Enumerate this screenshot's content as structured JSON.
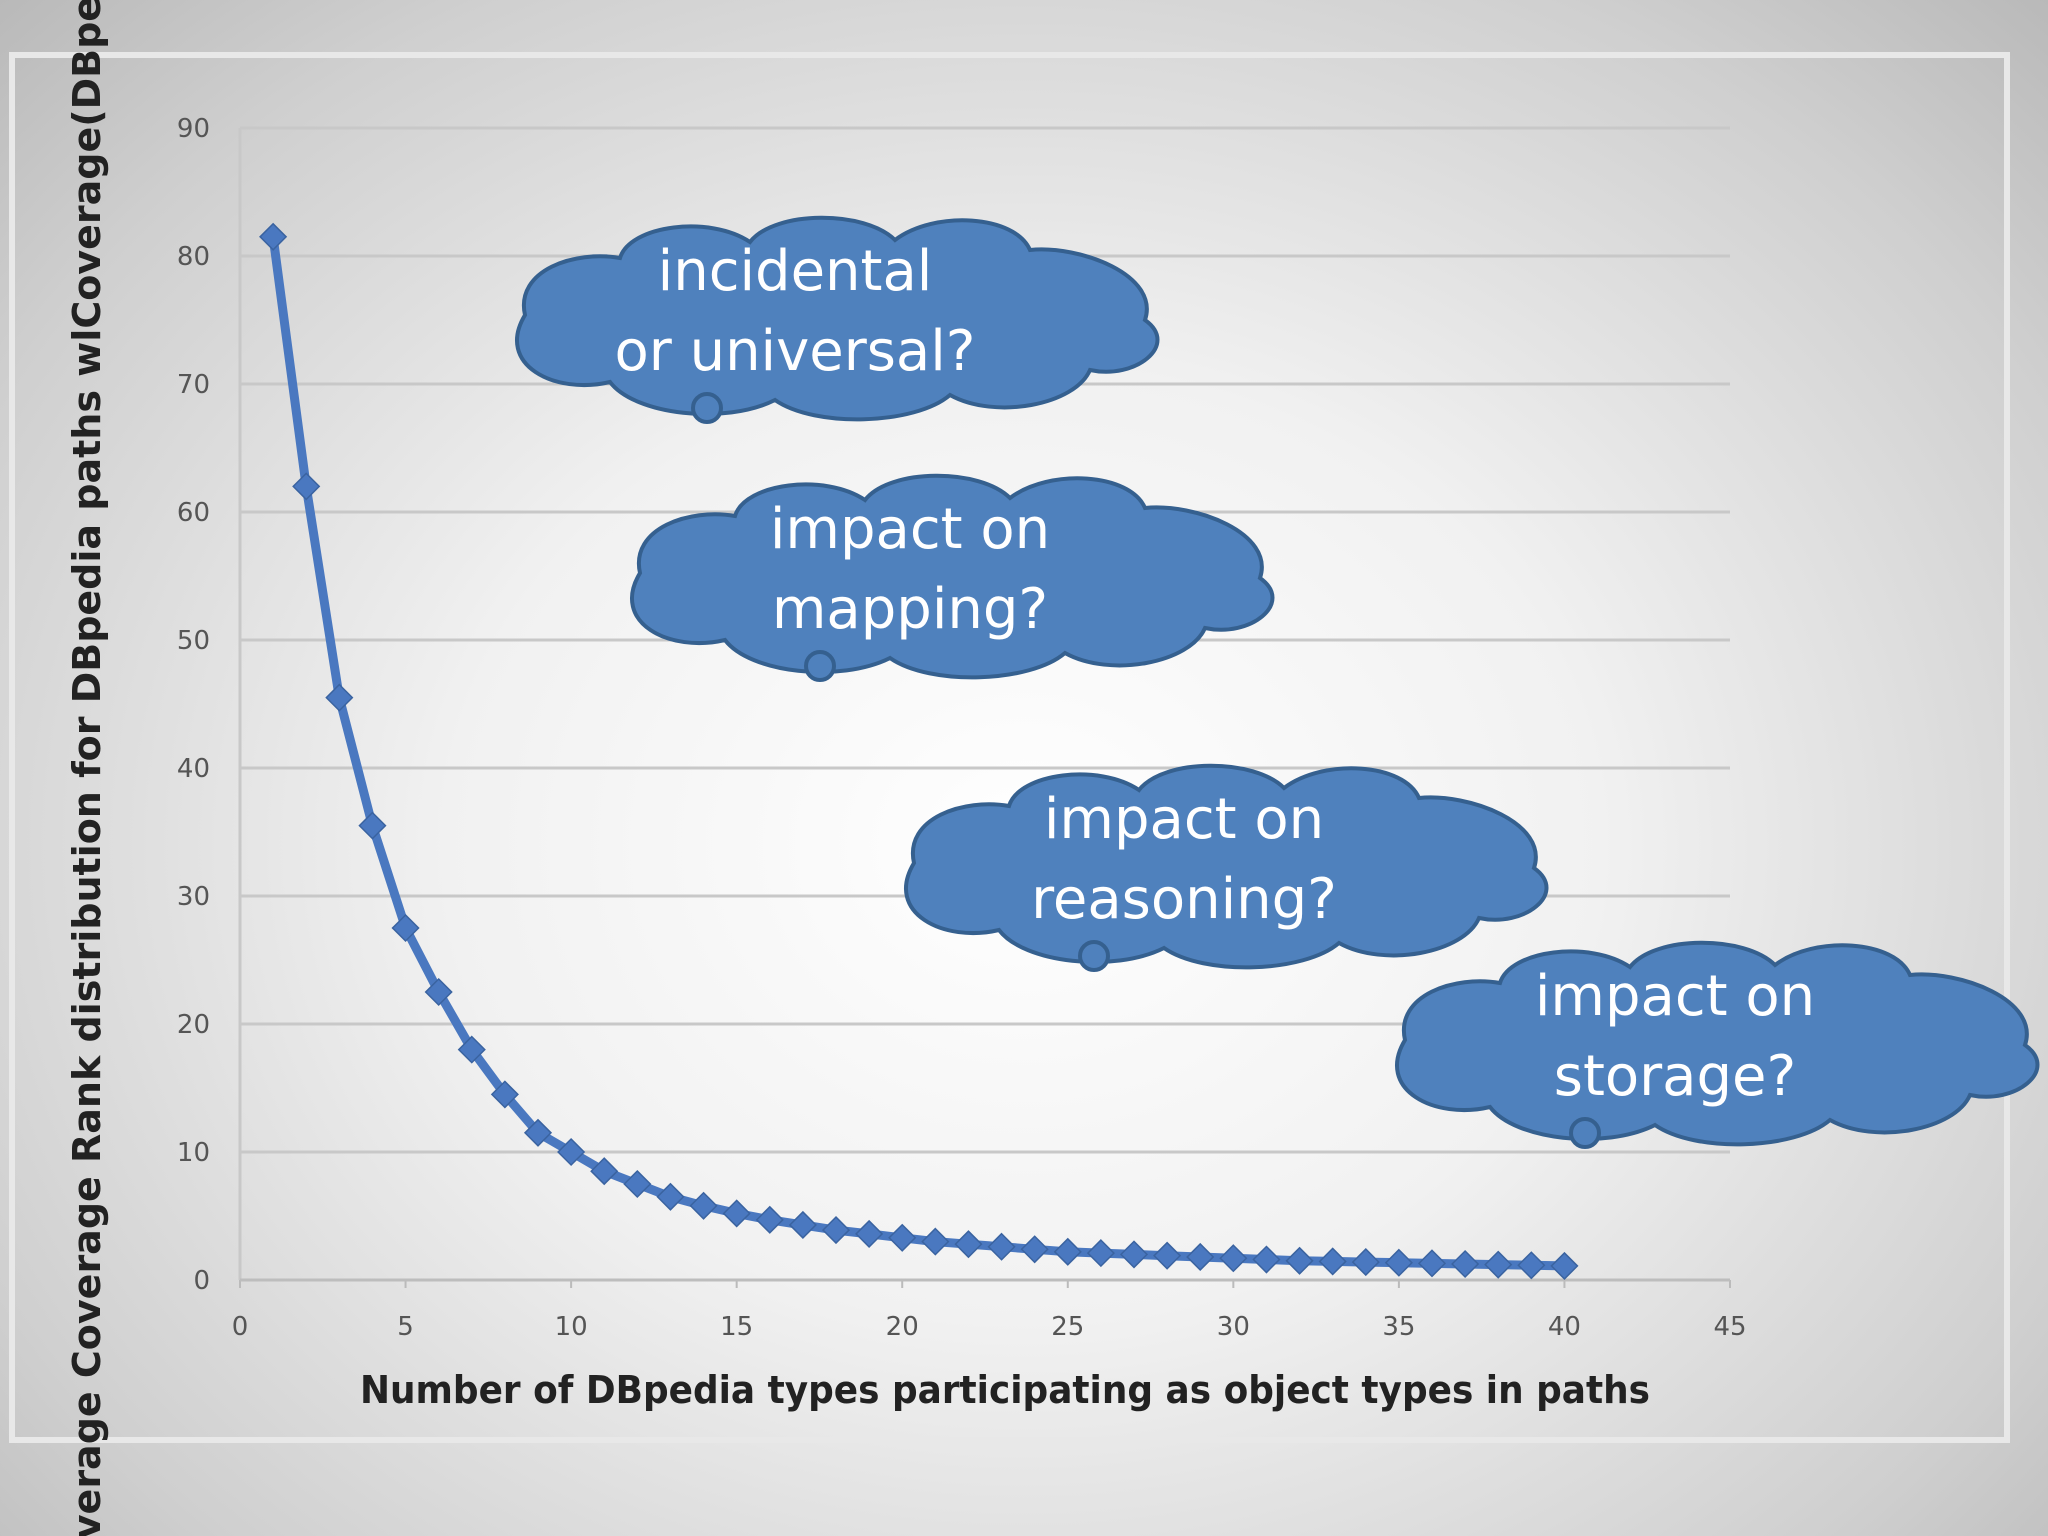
{
  "chart_data": {
    "type": "line",
    "title": "",
    "xlabel": "Number of DBpedia types participating as object types in paths",
    "ylabel": "Average Coverage Rank distribution for DBpedia paths wlCoverage(DBpedia)",
    "xlim": [
      0,
      45
    ],
    "ylim": [
      0,
      90
    ],
    "x_ticks": [
      "0",
      "5",
      "10",
      "15",
      "20",
      "25",
      "30",
      "35",
      "40",
      "45"
    ],
    "y_ticks": [
      "0",
      "10",
      "20",
      "30",
      "40",
      "50",
      "60",
      "70",
      "80",
      "90"
    ],
    "grid": true,
    "legend": "none",
    "series": [
      {
        "color": "#4a78c0",
        "marker": "diamond",
        "x": [
          1,
          2,
          3,
          4,
          5,
          6,
          7,
          8,
          9,
          10,
          11,
          12,
          13,
          14,
          15,
          16,
          17,
          18,
          19,
          20,
          21,
          22,
          23,
          24,
          25,
          26,
          27,
          28,
          29,
          30,
          31,
          32,
          33,
          34,
          35,
          36,
          37,
          38,
          39,
          40
        ],
        "y": [
          81.5,
          62,
          45.5,
          35.5,
          27.5,
          22.5,
          18,
          14.5,
          11.5,
          10,
          8.5,
          7.5,
          6.5,
          5.8,
          5.2,
          4.7,
          4.3,
          3.9,
          3.6,
          3.3,
          3.0,
          2.8,
          2.6,
          2.4,
          2.2,
          2.1,
          2.0,
          1.9,
          1.8,
          1.7,
          1.6,
          1.5,
          1.45,
          1.4,
          1.35,
          1.3,
          1.25,
          1.2,
          1.15,
          1.1
        ]
      }
    ]
  },
  "annotations": {
    "color": "#4f81bd",
    "clouds": [
      {
        "line1": "incidental",
        "line2": "or universal?"
      },
      {
        "line1": "impact on",
        "line2": "mapping?"
      },
      {
        "line1": "impact on",
        "line2": "reasoning?"
      },
      {
        "line1": "impact on",
        "line2": "storage?"
      }
    ]
  }
}
